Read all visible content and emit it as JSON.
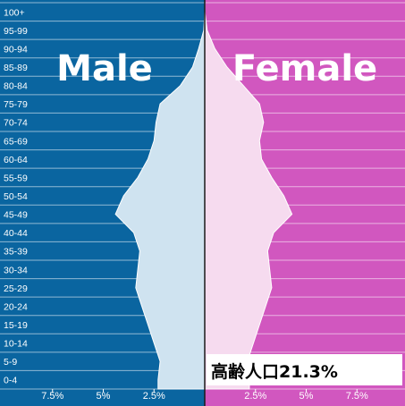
{
  "chart_data": {
    "type": "population-pyramid",
    "age_groups": [
      "0-4",
      "5-9",
      "10-14",
      "15-19",
      "20-24",
      "25-29",
      "30-34",
      "35-39",
      "40-44",
      "45-49",
      "50-54",
      "55-59",
      "60-64",
      "65-69",
      "70-74",
      "75-79",
      "80-84",
      "85-89",
      "90-94",
      "95-99",
      "100+"
    ],
    "series": [
      {
        "name": "Male",
        "values": [
          2.3,
          2.2,
          2.5,
          2.8,
          3.1,
          3.4,
          3.3,
          3.2,
          3.5,
          4.4,
          4.0,
          3.3,
          2.8,
          2.5,
          2.4,
          2.2,
          1.2,
          0.6,
          0.3,
          0.05,
          0.0
        ]
      },
      {
        "name": "Female",
        "values": [
          2.2,
          2.1,
          2.4,
          2.7,
          3.0,
          3.3,
          3.2,
          3.1,
          3.4,
          4.3,
          3.9,
          3.3,
          2.8,
          2.7,
          2.9,
          2.7,
          1.9,
          1.1,
          0.5,
          0.12,
          0.01
        ]
      }
    ],
    "x_ticks": [
      "7.5%",
      "5%",
      "2.5%",
      "2.5%",
      "5%",
      "7.5%"
    ],
    "x_tick_values": [
      -7.5,
      -5,
      -2.5,
      2.5,
      5,
      7.5
    ],
    "xlim": [
      -7.5,
      7.5
    ],
    "colors": {
      "male": "#0a65a0",
      "female": "#d157bf",
      "male_fill": "#cfe3f0",
      "female_fill": "#f6dbef",
      "grid": "#ffffff"
    }
  },
  "labels": {
    "male_title": "Male",
    "female_title": "Female",
    "note": "高齢人口21.3%"
  }
}
